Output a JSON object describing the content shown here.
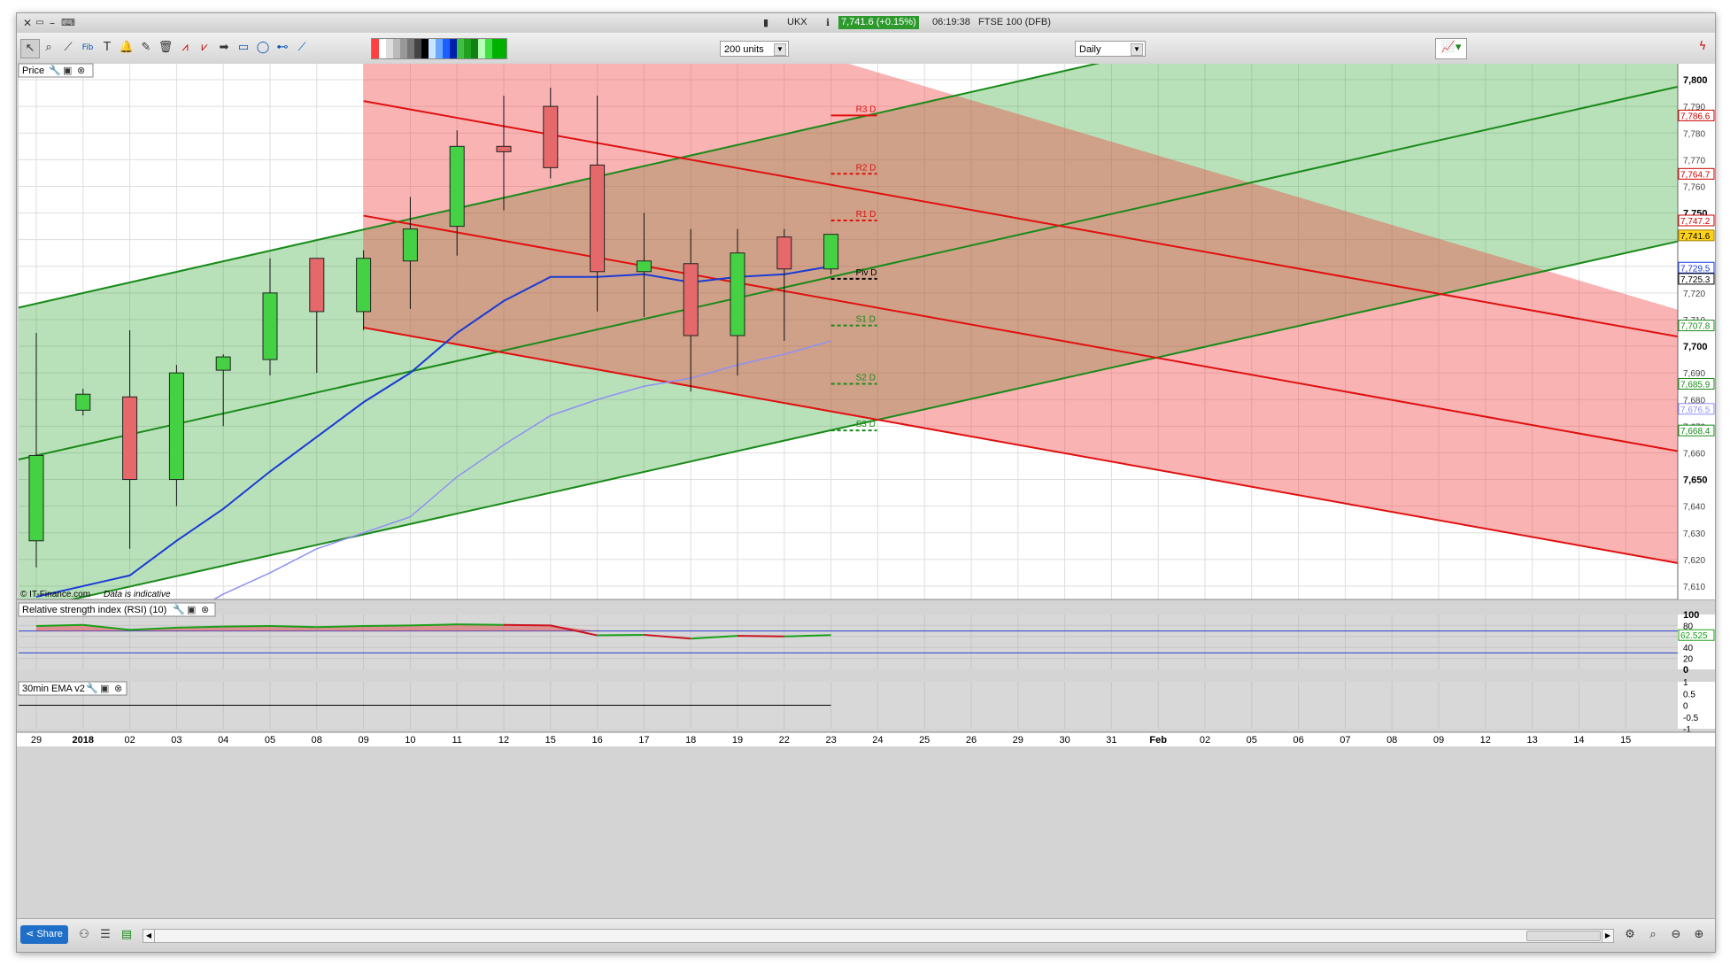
{
  "window": {
    "symbol": "UKX",
    "price_badge": "7,741.6 (+0.15%)",
    "time": "06:19:38",
    "instrument": "FTSE 100 (DFB)"
  },
  "toolbar": {
    "units": "200 units",
    "interval": "Daily"
  },
  "panels": {
    "price": "Price",
    "rsi": "Relative strength index (RSI) (10)",
    "ema": "30min EMA v2"
  },
  "footer": {
    "copyright": "© IT-Finance.com",
    "indicative": "Data is indicative",
    "share": "Share"
  },
  "colors": {
    "up": "#44d144",
    "down": "#e5696b",
    "ma_fast": "#1a3ad6",
    "ma_slow": "#8f8ff5",
    "green_channel": "#1a8a1a",
    "red_channel": "#e01010",
    "badge": "#2e9a2e"
  },
  "chart_data": {
    "type": "candlestick",
    "x_labels": [
      "29",
      "2018",
      "02",
      "03",
      "04",
      "05",
      "08",
      "09",
      "10",
      "11",
      "12",
      "15",
      "16",
      "17",
      "18",
      "19",
      "22",
      "23",
      "24",
      "25",
      "26",
      "29",
      "30",
      "31",
      "Feb",
      "02",
      "05",
      "06",
      "07",
      "08",
      "09",
      "12",
      "13",
      "14",
      "15"
    ],
    "y_ticks": [
      "7,800",
      "7,790",
      "7,780",
      "7,770",
      "7,760",
      "7,750",
      "7,720",
      "7,710",
      "7,700",
      "7,690",
      "7,680",
      "7,670",
      "7,660",
      "7,650",
      "7,640",
      "7,630",
      "7,620",
      "7,610"
    ],
    "ylim": [
      7605,
      7806
    ],
    "candles": [
      {
        "d": "29",
        "o": 7627,
        "h": 7705,
        "l": 7617,
        "c": 7659
      },
      {
        "d": "2018",
        "o": 7676,
        "h": 7684,
        "l": 7674,
        "c": 7682
      },
      {
        "d": "02",
        "o": 7681,
        "h": 7706,
        "l": 7624,
        "c": 7650
      },
      {
        "d": "03",
        "o": 7650,
        "h": 7693,
        "l": 7640,
        "c": 7690
      },
      {
        "d": "04",
        "o": 7691,
        "h": 7697,
        "l": 7670,
        "c": 7696
      },
      {
        "d": "05",
        "o": 7695,
        "h": 7733,
        "l": 7689,
        "c": 7720
      },
      {
        "d": "08",
        "o": 7733,
        "h": 7733,
        "l": 7690,
        "c": 7713
      },
      {
        "d": "09",
        "o": 7713,
        "h": 7736,
        "l": 7706,
        "c": 7733
      },
      {
        "d": "10",
        "o": 7732,
        "h": 7756,
        "l": 7714,
        "c": 7744
      },
      {
        "d": "11",
        "o": 7745,
        "h": 7781,
        "l": 7734,
        "c": 7775
      },
      {
        "d": "12",
        "o": 7775,
        "h": 7794,
        "l": 7751,
        "c": 7773
      },
      {
        "d": "15",
        "o": 7790,
        "h": 7797,
        "l": 7763,
        "c": 7767
      },
      {
        "d": "16",
        "o": 7768,
        "h": 7794,
        "l": 7713,
        "c": 7728
      },
      {
        "d": "17",
        "o": 7728,
        "h": 7750,
        "l": 7711,
        "c": 7732
      },
      {
        "d": "18",
        "o": 7731,
        "h": 7744,
        "l": 7683,
        "c": 7704
      },
      {
        "d": "19",
        "o": 7704,
        "h": 7744,
        "l": 7689,
        "c": 7735
      },
      {
        "d": "22",
        "o": 7741,
        "h": 7744,
        "l": 7702,
        "c": 7729
      },
      {
        "d": "23",
        "o": 7729,
        "h": 7742,
        "l": 7727,
        "c": 7742
      }
    ],
    "ma_fast": [
      7606,
      7610,
      7614,
      7627,
      7639,
      7653,
      7666,
      7679,
      7690,
      7705,
      7717,
      7726,
      7726,
      7727,
      7724,
      7726,
      7727,
      7730
    ],
    "ma_slow": [
      7571,
      7579,
      7587,
      7597,
      7607,
      7615,
      7624,
      7630,
      7636,
      7651,
      7663,
      7674,
      7680,
      7685,
      7688,
      7693,
      7697,
      7702
    ],
    "pivots": [
      {
        "label": "R3 D",
        "value": 7786.6,
        "color": "#e01010"
      },
      {
        "label": "R2 D",
        "value": 7764.7,
        "color": "#e01010"
      },
      {
        "label": "R1 D",
        "value": 7747.2,
        "color": "#e01010"
      },
      {
        "label": "Piv D",
        "value": 7725.3,
        "color": "#000000"
      },
      {
        "label": "S1 D",
        "value": 7707.8,
        "color": "#1a8a1a"
      },
      {
        "label": "S2 D",
        "value": 7685.9,
        "color": "#1a8a1a"
      },
      {
        "label": "S3 D",
        "value": 7668.4,
        "color": "#1a8a1a"
      }
    ],
    "price_tags": [
      {
        "value": 7786.6,
        "text": "7,786.6",
        "bg": "#ffffff",
        "fg": "#cc0000",
        "border": "#cc0000"
      },
      {
        "value": 7764.7,
        "text": "7,764.7",
        "bg": "#ffffff",
        "fg": "#cc0000",
        "border": "#cc0000"
      },
      {
        "value": 7747.2,
        "text": "7,747.2",
        "bg": "#ffffff",
        "fg": "#cc0000",
        "border": "#cc0000"
      },
      {
        "value": 7741.6,
        "text": "7,741.6",
        "bg": "#ffd21a",
        "fg": "#000000",
        "border": "#a08000"
      },
      {
        "value": 7729.5,
        "text": "7,729.5",
        "bg": "#ffffff",
        "fg": "#1a3ad6",
        "border": "#1a3ad6"
      },
      {
        "value": 7725.3,
        "text": "7,725.3",
        "bg": "#ffffff",
        "fg": "#000000",
        "border": "#000000"
      },
      {
        "value": 7707.8,
        "text": "7,707.8",
        "bg": "#ffffff",
        "fg": "#1a8a1a",
        "border": "#1a8a1a"
      },
      {
        "value": 7685.9,
        "text": "7,685.9",
        "bg": "#ffffff",
        "fg": "#1a8a1a",
        "border": "#1a8a1a"
      },
      {
        "value": 7676.5,
        "text": "7,676.5",
        "bg": "#ffffff",
        "fg": "#8f8ff5",
        "border": "#8f8ff5"
      },
      {
        "value": 7668.4,
        "text": "7,668.4",
        "bg": "#ffffff",
        "fg": "#1a8a1a",
        "border": "#1a8a1a"
      }
    ],
    "channels": {
      "green": [
        [
          [
            0,
            7716
          ],
          [
            34,
            7851
          ]
        ],
        [
          [
            0,
            7659
          ],
          [
            34,
            7793
          ]
        ],
        [
          [
            0,
            7602
          ],
          [
            34,
            7735
          ]
        ]
      ],
      "red": [
        [
          [
            7,
            7792
          ],
          [
            35,
            7704
          ]
        ],
        [
          [
            7,
            7749
          ],
          [
            35,
            7661
          ]
        ],
        [
          [
            7,
            7707
          ],
          [
            35,
            7619
          ]
        ]
      ]
    },
    "rsi": {
      "ticks": [
        "100",
        "80",
        "60",
        "40",
        "20",
        "0"
      ],
      "ylim": [
        0,
        100
      ],
      "upper": 70,
      "lower": 30,
      "values": [
        79,
        81,
        72,
        76,
        78,
        79,
        77,
        79,
        80,
        82,
        81,
        80,
        62,
        63,
        56,
        61,
        60,
        62.525
      ],
      "last_label": "62.525"
    },
    "ema_panel": {
      "ticks": [
        "1",
        "0.5",
        "0",
        "-0.5",
        "-1"
      ],
      "ylim": [
        -1,
        1
      ],
      "values": [
        0,
        0,
        0,
        0,
        0,
        0,
        0,
        0,
        0,
        0,
        0,
        0,
        0,
        0,
        0,
        0,
        0,
        0
      ]
    }
  }
}
